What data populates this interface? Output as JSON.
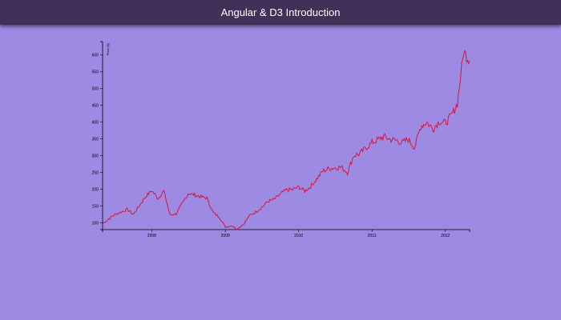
{
  "header": {
    "title": "Angular & D3 Introduction"
  },
  "chart_data": {
    "type": "line",
    "title": "",
    "xlabel": "",
    "ylabel": "Price ($)",
    "x_ticks": [
      "2008",
      "2009",
      "2010",
      "2011",
      "2012"
    ],
    "y_ticks": [
      100,
      150,
      200,
      250,
      300,
      350,
      400,
      450,
      500,
      550,
      600
    ],
    "xlim": [
      "2007-05-01",
      "2012-05-01"
    ],
    "ylim": [
      80,
      640
    ],
    "grid": false,
    "line_color": "#dc143c",
    "series": [
      {
        "x": [
          "2007-05-01",
          "2007-06-01",
          "2007-07-01",
          "2007-08-01",
          "2007-09-01",
          "2007-10-01",
          "2007-11-01",
          "2007-12-01",
          "2008-01-01",
          "2008-02-01",
          "2008-03-01",
          "2008-04-01",
          "2008-05-01",
          "2008-06-01",
          "2008-07-01",
          "2008-08-01",
          "2008-09-01",
          "2008-10-01",
          "2008-11-01",
          "2008-12-01",
          "2009-01-01",
          "2009-02-01",
          "2009-03-01",
          "2009-04-01",
          "2009-05-01",
          "2009-06-01",
          "2009-07-01",
          "2009-08-01",
          "2009-09-01",
          "2009-10-01",
          "2009-11-01",
          "2009-12-01",
          "2010-01-01",
          "2010-02-01",
          "2010-03-01",
          "2010-04-01",
          "2010-05-01",
          "2010-06-01",
          "2010-07-01",
          "2010-08-01",
          "2010-09-01",
          "2010-10-01",
          "2010-11-01",
          "2010-12-01",
          "2011-01-01",
          "2011-02-01",
          "2011-03-01",
          "2011-04-01",
          "2011-05-01",
          "2011-06-01",
          "2011-07-01",
          "2011-08-01",
          "2011-09-01",
          "2011-10-01",
          "2011-11-01",
          "2011-12-01",
          "2012-01-01",
          "2012-02-01",
          "2012-03-01",
          "2012-04-01",
          "2012-05-01"
        ],
        "values": [
          97,
          112,
          125,
          132,
          140,
          125,
          152,
          178,
          196,
          173,
          195,
          123,
          127,
          158,
          188,
          183,
          178,
          174,
          131,
          118,
          88,
          92,
          82,
          96,
          122,
          132,
          146,
          164,
          170,
          185,
          198,
          199,
          207,
          195,
          208,
          231,
          254,
          262,
          264,
          266,
          250,
          300,
          306,
          323,
          339,
          348,
          357,
          349,
          346,
          339,
          349,
          324,
          388,
          400,
          380,
          403,
          397,
          420,
          456,
          611,
          583
        ]
      }
    ]
  }
}
